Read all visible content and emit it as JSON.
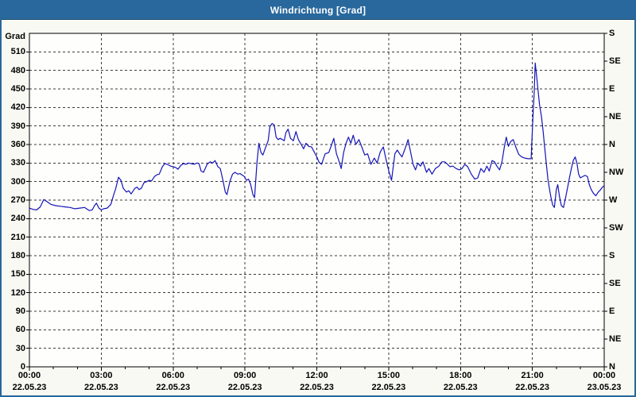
{
  "window": {
    "title": "Windrichtung [Grad]"
  },
  "colors": {
    "titlebar_bg": "#28689d",
    "titlebar_text": "#ffffff",
    "outer_border": "#28689d",
    "canvas_bg": "#f9f9f3",
    "plot_bg": "#fefefd",
    "frame": "#000000",
    "grid": "#3c3c3c",
    "tick_text": "#000000",
    "line": "#1414b8"
  },
  "chart_data": {
    "type": "line",
    "title": "Windrichtung [Grad]",
    "ylabel_left": "Grad",
    "grid": true,
    "legend": "none",
    "y_axis": {
      "min": 0,
      "max": 540,
      "tick_step": 30,
      "ticks": [
        0,
        30,
        60,
        90,
        120,
        150,
        180,
        210,
        240,
        270,
        300,
        330,
        360,
        390,
        420,
        450,
        480,
        510
      ]
    },
    "right_axis": {
      "unit": "compass",
      "ticks": [
        {
          "value": 0,
          "label": "N"
        },
        {
          "value": 45,
          "label": "NE"
        },
        {
          "value": 90,
          "label": "E"
        },
        {
          "value": 135,
          "label": "SE"
        },
        {
          "value": 180,
          "label": "S"
        },
        {
          "value": 225,
          "label": "SW"
        },
        {
          "value": 270,
          "label": "W"
        },
        {
          "value": 315,
          "label": "NW"
        },
        {
          "value": 360,
          "label": "N"
        },
        {
          "value": 405,
          "label": "NE"
        },
        {
          "value": 450,
          "label": "E"
        },
        {
          "value": 495,
          "label": "SE"
        },
        {
          "value": 540,
          "label": "S"
        }
      ]
    },
    "x_axis": {
      "min_hours": 0,
      "max_hours": 24,
      "gridline_step_hours": 3,
      "minor_tick_hours": 1,
      "labels": [
        {
          "hours": 0,
          "time": "00:00",
          "date": "22.05.23"
        },
        {
          "hours": 3,
          "time": "03:00",
          "date": "22.05.23"
        },
        {
          "hours": 6,
          "time": "06:00",
          "date": "22.05.23"
        },
        {
          "hours": 9,
          "time": "09:00",
          "date": "22.05.23"
        },
        {
          "hours": 12,
          "time": "12:00",
          "date": "22.05.23"
        },
        {
          "hours": 15,
          "time": "15:00",
          "date": "22.05.23"
        },
        {
          "hours": 18,
          "time": "18:00",
          "date": "22.05.23"
        },
        {
          "hours": 21,
          "time": "21:00",
          "date": "22.05.23"
        },
        {
          "hours": 24,
          "time": "00:00",
          "date": "23.05.23"
        }
      ]
    },
    "series": [
      {
        "name": "Windrichtung",
        "color": "#1414b8",
        "points": [
          [
            0,
            257
          ],
          [
            0.15,
            255
          ],
          [
            0.3,
            254
          ],
          [
            0.45,
            259
          ],
          [
            0.6,
            271
          ],
          [
            0.75,
            267
          ],
          [
            0.9,
            263
          ],
          [
            1.1,
            261
          ],
          [
            1.3,
            260
          ],
          [
            1.5,
            259
          ],
          [
            1.7,
            258
          ],
          [
            1.9,
            256
          ],
          [
            2.1,
            257
          ],
          [
            2.3,
            258
          ],
          [
            2.5,
            253
          ],
          [
            2.62,
            254
          ],
          [
            2.72,
            261
          ],
          [
            2.8,
            265
          ],
          [
            2.9,
            257
          ],
          [
            3.0,
            254
          ],
          [
            3.1,
            256
          ],
          [
            3.25,
            257
          ],
          [
            3.4,
            263
          ],
          [
            3.5,
            276
          ],
          [
            3.6,
            288
          ],
          [
            3.72,
            307
          ],
          [
            3.82,
            302
          ],
          [
            3.92,
            289
          ],
          [
            4.05,
            283
          ],
          [
            4.15,
            285
          ],
          [
            4.25,
            280
          ],
          [
            4.4,
            289
          ],
          [
            4.5,
            291
          ],
          [
            4.57,
            287
          ],
          [
            4.67,
            289
          ],
          [
            4.78,
            298
          ],
          [
            4.9,
            300
          ],
          [
            5.0,
            302
          ],
          [
            5.1,
            301
          ],
          [
            5.22,
            308
          ],
          [
            5.32,
            311
          ],
          [
            5.42,
            312
          ],
          [
            5.55,
            324
          ],
          [
            5.65,
            329
          ],
          [
            5.75,
            328
          ],
          [
            5.9,
            325
          ],
          [
            6.0,
            324
          ],
          [
            6.1,
            323
          ],
          [
            6.2,
            320
          ],
          [
            6.32,
            326
          ],
          [
            6.42,
            329
          ],
          [
            6.55,
            328
          ],
          [
            6.65,
            330
          ],
          [
            6.75,
            329
          ],
          [
            6.88,
            328
          ],
          [
            7.0,
            330
          ],
          [
            7.08,
            329
          ],
          [
            7.17,
            317
          ],
          [
            7.27,
            315
          ],
          [
            7.42,
            328
          ],
          [
            7.55,
            332
          ],
          [
            7.65,
            330
          ],
          [
            7.75,
            334
          ],
          [
            7.87,
            324
          ],
          [
            7.97,
            321
          ],
          [
            8.07,
            304
          ],
          [
            8.18,
            283
          ],
          [
            8.25,
            279
          ],
          [
            8.37,
            300
          ],
          [
            8.48,
            312
          ],
          [
            8.58,
            315
          ],
          [
            8.7,
            312
          ],
          [
            8.8,
            313
          ],
          [
            8.9,
            310
          ],
          [
            8.98,
            308
          ],
          [
            9.06,
            302
          ],
          [
            9.15,
            304
          ],
          [
            9.24,
            295
          ],
          [
            9.33,
            279
          ],
          [
            9.4,
            274
          ],
          [
            9.5,
            330
          ],
          [
            9.58,
            362
          ],
          [
            9.67,
            347
          ],
          [
            9.75,
            343
          ],
          [
            9.87,
            356
          ],
          [
            9.97,
            366
          ],
          [
            10.04,
            389
          ],
          [
            10.13,
            394
          ],
          [
            10.22,
            392
          ],
          [
            10.3,
            372
          ],
          [
            10.38,
            368
          ],
          [
            10.47,
            370
          ],
          [
            10.56,
            368
          ],
          [
            10.64,
            366
          ],
          [
            10.71,
            379
          ],
          [
            10.8,
            385
          ],
          [
            10.9,
            370
          ],
          [
            11.02,
            366
          ],
          [
            11.13,
            381
          ],
          [
            11.23,
            368
          ],
          [
            11.35,
            360
          ],
          [
            11.45,
            353
          ],
          [
            11.55,
            362
          ],
          [
            11.66,
            357
          ],
          [
            11.78,
            356
          ],
          [
            11.89,
            348
          ],
          [
            12.0,
            340
          ],
          [
            12.1,
            331
          ],
          [
            12.2,
            328
          ],
          [
            12.35,
            345
          ],
          [
            12.5,
            347
          ],
          [
            12.62,
            360
          ],
          [
            12.71,
            370
          ],
          [
            12.82,
            345
          ],
          [
            12.92,
            334
          ],
          [
            13.02,
            321
          ],
          [
            13.12,
            347
          ],
          [
            13.22,
            362
          ],
          [
            13.32,
            372
          ],
          [
            13.42,
            362
          ],
          [
            13.52,
            375
          ],
          [
            13.63,
            360
          ],
          [
            13.76,
            368
          ],
          [
            13.88,
            356
          ],
          [
            14.0,
            343
          ],
          [
            14.12,
            345
          ],
          [
            14.26,
            328
          ],
          [
            14.4,
            338
          ],
          [
            14.52,
            330
          ],
          [
            14.65,
            348
          ],
          [
            14.78,
            356
          ],
          [
            14.9,
            334
          ],
          [
            15.02,
            315
          ],
          [
            15.12,
            302
          ],
          [
            15.26,
            345
          ],
          [
            15.36,
            351
          ],
          [
            15.46,
            345
          ],
          [
            15.56,
            340
          ],
          [
            15.7,
            355
          ],
          [
            15.81,
            368
          ],
          [
            15.92,
            347
          ],
          [
            16.02,
            328
          ],
          [
            16.12,
            319
          ],
          [
            16.22,
            330
          ],
          [
            16.33,
            325
          ],
          [
            16.43,
            332
          ],
          [
            16.58,
            315
          ],
          [
            16.68,
            321
          ],
          [
            16.81,
            312
          ],
          [
            16.95,
            321
          ],
          [
            17.1,
            325
          ],
          [
            17.22,
            332
          ],
          [
            17.34,
            332
          ],
          [
            17.46,
            328
          ],
          [
            17.56,
            324
          ],
          [
            17.68,
            325
          ],
          [
            17.82,
            321
          ],
          [
            17.95,
            319
          ],
          [
            18.06,
            321
          ],
          [
            18.18,
            328
          ],
          [
            18.3,
            324
          ],
          [
            18.45,
            312
          ],
          [
            18.6,
            304
          ],
          [
            18.72,
            306
          ],
          [
            18.85,
            321
          ],
          [
            18.98,
            315
          ],
          [
            19.1,
            325
          ],
          [
            19.2,
            317
          ],
          [
            19.32,
            334
          ],
          [
            19.42,
            332
          ],
          [
            19.52,
            325
          ],
          [
            19.63,
            319
          ],
          [
            19.73,
            332
          ],
          [
            19.83,
            356
          ],
          [
            19.91,
            372
          ],
          [
            20.0,
            357
          ],
          [
            20.1,
            365
          ],
          [
            20.2,
            368
          ],
          [
            20.31,
            356
          ],
          [
            20.43,
            344
          ],
          [
            20.55,
            340
          ],
          [
            20.68,
            338
          ],
          [
            20.82,
            337
          ],
          [
            20.95,
            337
          ],
          [
            21.02,
            400
          ],
          [
            21.08,
            446
          ],
          [
            21.12,
            492
          ],
          [
            21.18,
            471
          ],
          [
            21.23,
            450
          ],
          [
            21.3,
            424
          ],
          [
            21.38,
            405
          ],
          [
            21.45,
            381
          ],
          [
            21.52,
            353
          ],
          [
            21.58,
            330
          ],
          [
            21.65,
            304
          ],
          [
            21.72,
            287
          ],
          [
            21.78,
            274
          ],
          [
            21.85,
            262
          ],
          [
            21.92,
            258
          ],
          [
            22.0,
            287
          ],
          [
            22.06,
            295
          ],
          [
            22.13,
            276
          ],
          [
            22.21,
            261
          ],
          [
            22.3,
            258
          ],
          [
            22.4,
            276
          ],
          [
            22.48,
            292
          ],
          [
            22.56,
            308
          ],
          [
            22.63,
            321
          ],
          [
            22.71,
            334
          ],
          [
            22.79,
            340
          ],
          [
            22.86,
            330
          ],
          [
            22.93,
            312
          ],
          [
            23.0,
            306
          ],
          [
            23.1,
            308
          ],
          [
            23.2,
            310
          ],
          [
            23.3,
            308
          ],
          [
            23.38,
            295
          ],
          [
            23.46,
            287
          ],
          [
            23.55,
            281
          ],
          [
            23.65,
            277
          ],
          [
            23.75,
            283
          ],
          [
            23.85,
            287
          ],
          [
            23.95,
            292
          ],
          [
            24.0,
            293
          ]
        ]
      }
    ]
  }
}
